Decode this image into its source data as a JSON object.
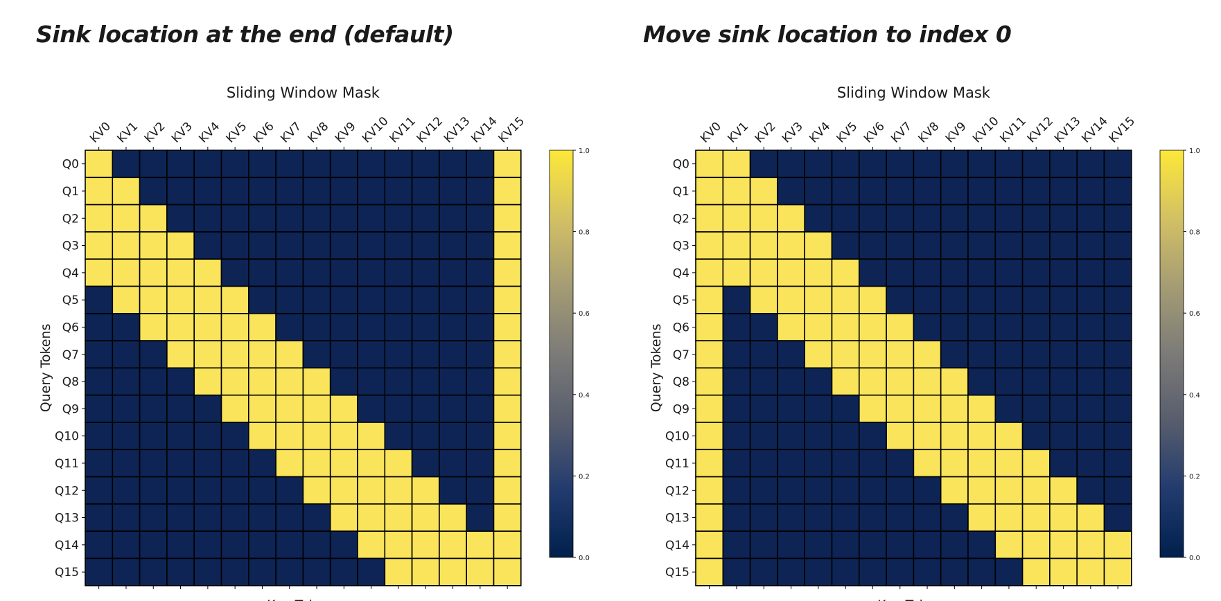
{
  "headings": {
    "left": "Sink location at the end (default)",
    "right": "Move sink location to index 0"
  },
  "colors": {
    "masked": "#0d2455",
    "attend": "#f9e45b",
    "gridline": "#000000",
    "colormap_stops": [
      "#00204d",
      "#223b6e",
      "#575d6d",
      "#7c7b78",
      "#a59c74",
      "#d3c164",
      "#fde838"
    ]
  },
  "chart_data": [
    {
      "type": "heatmap",
      "title": "Sliding Window Mask",
      "xlabel": "Key Tokens",
      "ylabel": "Query Tokens",
      "x_ticks": [
        "KV0",
        "KV1",
        "KV2",
        "KV3",
        "KV4",
        "KV5",
        "KV6",
        "KV7",
        "KV8",
        "KV9",
        "KV10",
        "KV11",
        "KV12",
        "KV13",
        "KV14",
        "KV15"
      ],
      "y_ticks": [
        "Q0",
        "Q1",
        "Q2",
        "Q3",
        "Q4",
        "Q5",
        "Q6",
        "Q7",
        "Q8",
        "Q9",
        "Q10",
        "Q11",
        "Q12",
        "Q13",
        "Q14",
        "Q15"
      ],
      "colorbar": {
        "range": [
          0.0,
          1.0
        ],
        "ticks": [
          "0.0",
          "0.2",
          "0.4",
          "0.6",
          "0.8",
          "1.0"
        ]
      },
      "values": [
        [
          1,
          0,
          0,
          0,
          0,
          0,
          0,
          0,
          0,
          0,
          0,
          0,
          0,
          0,
          0,
          1
        ],
        [
          1,
          1,
          0,
          0,
          0,
          0,
          0,
          0,
          0,
          0,
          0,
          0,
          0,
          0,
          0,
          1
        ],
        [
          1,
          1,
          1,
          0,
          0,
          0,
          0,
          0,
          0,
          0,
          0,
          0,
          0,
          0,
          0,
          1
        ],
        [
          1,
          1,
          1,
          1,
          0,
          0,
          0,
          0,
          0,
          0,
          0,
          0,
          0,
          0,
          0,
          1
        ],
        [
          1,
          1,
          1,
          1,
          1,
          0,
          0,
          0,
          0,
          0,
          0,
          0,
          0,
          0,
          0,
          1
        ],
        [
          0,
          1,
          1,
          1,
          1,
          1,
          0,
          0,
          0,
          0,
          0,
          0,
          0,
          0,
          0,
          1
        ],
        [
          0,
          0,
          1,
          1,
          1,
          1,
          1,
          0,
          0,
          0,
          0,
          0,
          0,
          0,
          0,
          1
        ],
        [
          0,
          0,
          0,
          1,
          1,
          1,
          1,
          1,
          0,
          0,
          0,
          0,
          0,
          0,
          0,
          1
        ],
        [
          0,
          0,
          0,
          0,
          1,
          1,
          1,
          1,
          1,
          0,
          0,
          0,
          0,
          0,
          0,
          1
        ],
        [
          0,
          0,
          0,
          0,
          0,
          1,
          1,
          1,
          1,
          1,
          0,
          0,
          0,
          0,
          0,
          1
        ],
        [
          0,
          0,
          0,
          0,
          0,
          0,
          1,
          1,
          1,
          1,
          1,
          0,
          0,
          0,
          0,
          1
        ],
        [
          0,
          0,
          0,
          0,
          0,
          0,
          0,
          1,
          1,
          1,
          1,
          1,
          0,
          0,
          0,
          1
        ],
        [
          0,
          0,
          0,
          0,
          0,
          0,
          0,
          0,
          1,
          1,
          1,
          1,
          1,
          0,
          0,
          1
        ],
        [
          0,
          0,
          0,
          0,
          0,
          0,
          0,
          0,
          0,
          1,
          1,
          1,
          1,
          1,
          0,
          1
        ],
        [
          0,
          0,
          0,
          0,
          0,
          0,
          0,
          0,
          0,
          0,
          1,
          1,
          1,
          1,
          1,
          1
        ],
        [
          0,
          0,
          0,
          0,
          0,
          0,
          0,
          0,
          0,
          0,
          0,
          1,
          1,
          1,
          1,
          1
        ]
      ]
    },
    {
      "type": "heatmap",
      "title": "Sliding Window Mask",
      "xlabel": "Key Tokens",
      "ylabel": "Query Tokens",
      "x_ticks": [
        "KV0",
        "KV1",
        "KV2",
        "KV3",
        "KV4",
        "KV5",
        "KV6",
        "KV7",
        "KV8",
        "KV9",
        "KV10",
        "KV11",
        "KV12",
        "KV13",
        "KV14",
        "KV15"
      ],
      "y_ticks": [
        "Q0",
        "Q1",
        "Q2",
        "Q3",
        "Q4",
        "Q5",
        "Q6",
        "Q7",
        "Q8",
        "Q9",
        "Q10",
        "Q11",
        "Q12",
        "Q13",
        "Q14",
        "Q15"
      ],
      "colorbar": {
        "range": [
          0.0,
          1.0
        ],
        "ticks": [
          "0.0",
          "0.2",
          "0.4",
          "0.6",
          "0.8",
          "1.0"
        ]
      },
      "values": [
        [
          1,
          1,
          0,
          0,
          0,
          0,
          0,
          0,
          0,
          0,
          0,
          0,
          0,
          0,
          0,
          0
        ],
        [
          1,
          1,
          1,
          0,
          0,
          0,
          0,
          0,
          0,
          0,
          0,
          0,
          0,
          0,
          0,
          0
        ],
        [
          1,
          1,
          1,
          1,
          0,
          0,
          0,
          0,
          0,
          0,
          0,
          0,
          0,
          0,
          0,
          0
        ],
        [
          1,
          1,
          1,
          1,
          1,
          0,
          0,
          0,
          0,
          0,
          0,
          0,
          0,
          0,
          0,
          0
        ],
        [
          1,
          1,
          1,
          1,
          1,
          1,
          0,
          0,
          0,
          0,
          0,
          0,
          0,
          0,
          0,
          0
        ],
        [
          1,
          0,
          1,
          1,
          1,
          1,
          1,
          0,
          0,
          0,
          0,
          0,
          0,
          0,
          0,
          0
        ],
        [
          1,
          0,
          0,
          1,
          1,
          1,
          1,
          1,
          0,
          0,
          0,
          0,
          0,
          0,
          0,
          0
        ],
        [
          1,
          0,
          0,
          0,
          1,
          1,
          1,
          1,
          1,
          0,
          0,
          0,
          0,
          0,
          0,
          0
        ],
        [
          1,
          0,
          0,
          0,
          0,
          1,
          1,
          1,
          1,
          1,
          0,
          0,
          0,
          0,
          0,
          0
        ],
        [
          1,
          0,
          0,
          0,
          0,
          0,
          1,
          1,
          1,
          1,
          1,
          0,
          0,
          0,
          0,
          0
        ],
        [
          1,
          0,
          0,
          0,
          0,
          0,
          0,
          1,
          1,
          1,
          1,
          1,
          0,
          0,
          0,
          0
        ],
        [
          1,
          0,
          0,
          0,
          0,
          0,
          0,
          0,
          1,
          1,
          1,
          1,
          1,
          0,
          0,
          0
        ],
        [
          1,
          0,
          0,
          0,
          0,
          0,
          0,
          0,
          0,
          1,
          1,
          1,
          1,
          1,
          0,
          0
        ],
        [
          1,
          0,
          0,
          0,
          0,
          0,
          0,
          0,
          0,
          0,
          1,
          1,
          1,
          1,
          1,
          0
        ],
        [
          1,
          0,
          0,
          0,
          0,
          0,
          0,
          0,
          0,
          0,
          0,
          1,
          1,
          1,
          1,
          1
        ],
        [
          1,
          0,
          0,
          0,
          0,
          0,
          0,
          0,
          0,
          0,
          0,
          0,
          1,
          1,
          1,
          1
        ]
      ]
    }
  ]
}
